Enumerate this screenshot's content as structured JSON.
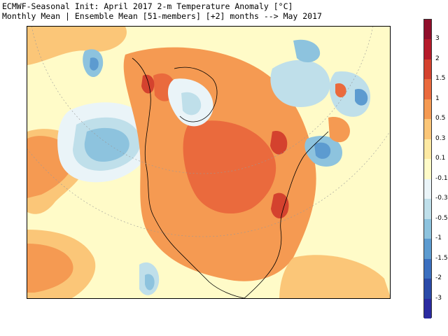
{
  "title": {
    "line1": "ECMWF-Seasonal Init: April 2017 2-m Temperature Anomaly [°C]",
    "line2": "Monthly Mean | Ensemble Mean [51-members] [+2] months --> May 2017"
  },
  "colorbar": {
    "labels": [
      "3",
      "2",
      "1.5",
      "1",
      "0.5",
      "0.3",
      "0.1",
      "-0.1",
      "-0.3",
      "-0.5",
      "-1",
      "-1.5",
      "-2",
      "-3"
    ],
    "colors": [
      "#8f0d2a",
      "#b51a2a",
      "#d4422e",
      "#ea6a3d",
      "#f59a52",
      "#fbc678",
      "#fde9a3",
      "#fffbc8",
      "#eaf4f8",
      "#bfdfea",
      "#8dc3de",
      "#5c9bd0",
      "#3b6fbf",
      "#2a4aa8",
      "#2a2aa0"
    ]
  }
}
